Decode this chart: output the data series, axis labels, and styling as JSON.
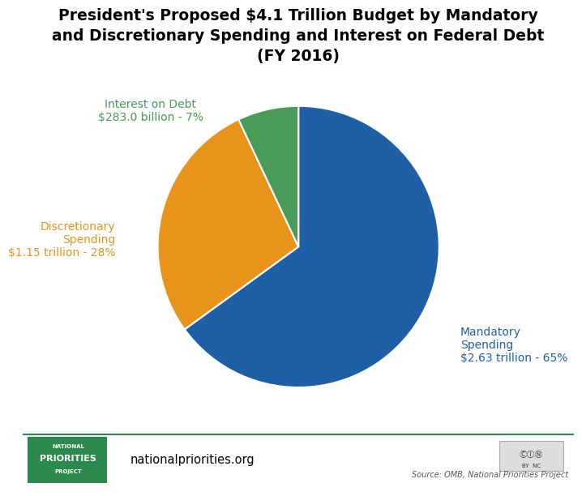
{
  "title_line1": "President's Proposed $4.1 Trillion Budget by Mandatory",
  "title_line2": "and Discretionary Spending and Interest on Federal Debt",
  "title_line3": "(FY 2016)",
  "slices": [
    65,
    28,
    7
  ],
  "colors": [
    "#1F5FA6",
    "#E8931A",
    "#4A9A5A"
  ],
  "label_mandatory": "Mandatory\nSpending\n$2.63 trillion - 65%",
  "label_discretionary": "Discretionary\nSpending\n$1.15 trillion - 28%",
  "label_interest": "Interest on Debt\n$283.0 billion - 7%",
  "label_colors": [
    "#1F5FA6",
    "#E8931A",
    "#4A9A5A"
  ],
  "startangle": 90,
  "background_color": "#FFFFFF",
  "footer_green": "#2D8A4E",
  "website_text": "nationalpriorities.org",
  "source_text": "Source: OMB, National Priorities Project"
}
